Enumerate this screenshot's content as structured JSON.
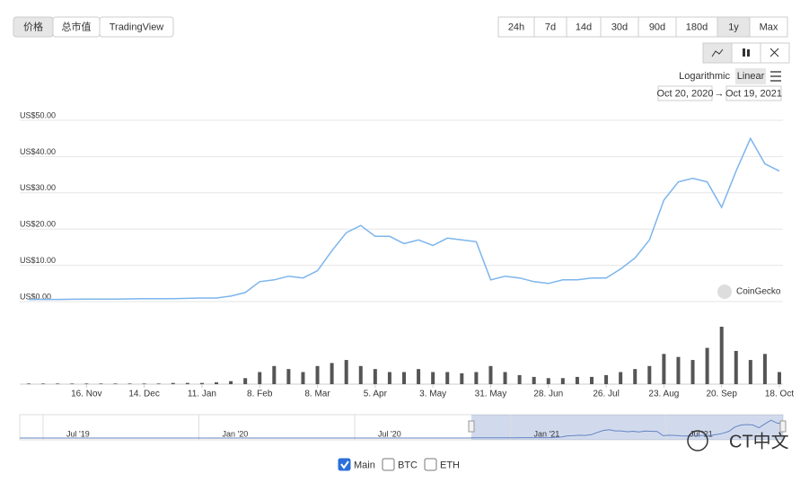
{
  "tabs": [
    "价格",
    "总市值",
    "TradingView"
  ],
  "ranges": [
    "24h",
    "7d",
    "14d",
    "30d",
    "90d",
    "180d",
    "1y",
    "Max"
  ],
  "scale_options": [
    "Logarithmic",
    "Linear"
  ],
  "date_from": "Oct 20, 2020",
  "date_to": "Oct 19, 2021",
  "watermark": "CoinGecko",
  "overlay": "CT中文",
  "legend": [
    "Main",
    "BTC",
    "ETH"
  ],
  "navigator_labels": [
    "Jul '19",
    "Jan '20",
    "Jul '20",
    "Jan '21",
    "Jul '21"
  ],
  "chart_data": {
    "type": "line",
    "categories": [
      null,
      null,
      null,
      null,
      "16. Nov",
      null,
      null,
      null,
      "14. Dec",
      null,
      null,
      null,
      "11. Jan",
      null,
      null,
      null,
      "8. Feb",
      null,
      null,
      null,
      "8. Mar",
      null,
      null,
      null,
      "5. Apr",
      null,
      null,
      null,
      "3. May",
      null,
      null,
      null,
      "31. May",
      null,
      null,
      null,
      "28. Jun",
      null,
      null,
      null,
      "26. Jul",
      null,
      null,
      null,
      "23. Aug",
      null,
      null,
      null,
      "20. Sep",
      null,
      null,
      null,
      "18. Oct"
    ],
    "values": [
      0.6,
      0.6,
      0.6,
      0.65,
      0.7,
      0.7,
      0.7,
      0.75,
      0.8,
      0.8,
      0.8,
      0.9,
      1.0,
      1.0,
      1.5,
      2.5,
      5.5,
      6,
      7,
      6.5,
      8.5,
      14,
      19,
      21,
      18,
      18,
      16,
      17,
      15.5,
      17.5,
      17,
      16.5,
      6,
      7,
      6.5,
      5.5,
      5,
      6,
      6,
      6.5,
      6.5,
      9,
      12,
      17,
      28,
      33,
      34,
      33,
      26,
      36,
      45,
      38,
      36
    ],
    "volumes": [
      1,
      1,
      1,
      1,
      1,
      1,
      1,
      1,
      1,
      1,
      2,
      2,
      2,
      3,
      5,
      10,
      20,
      30,
      25,
      20,
      30,
      35,
      40,
      30,
      25,
      20,
      20,
      25,
      20,
      20,
      18,
      20,
      30,
      20,
      15,
      12,
      10,
      10,
      12,
      12,
      15,
      20,
      25,
      30,
      50,
      45,
      40,
      60,
      95,
      55,
      40,
      50,
      20
    ],
    "color": "#7cb5ec",
    "volume_color": "#555555",
    "ylim": [
      0,
      50
    ],
    "yticks": [
      {
        "value": 0,
        "label": "US$0.00"
      },
      {
        "value": 10,
        "label": "US$10.00"
      },
      {
        "value": 20,
        "label": "US$20.00"
      },
      {
        "value": 30,
        "label": "US$30.00"
      },
      {
        "value": 40,
        "label": "US$40.00"
      },
      {
        "value": 50,
        "label": "US$50.00"
      }
    ],
    "grid": true
  }
}
